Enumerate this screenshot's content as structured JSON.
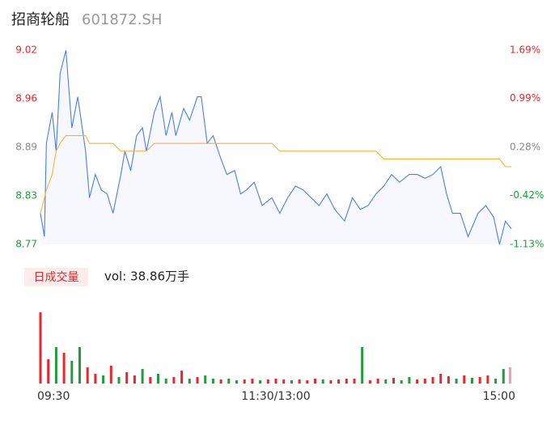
{
  "chart_data": [
    {
      "type": "line",
      "title": "招商轮船",
      "subtitle": "601872.SH",
      "x": [
        0,
        2,
        3,
        6,
        8,
        10,
        13,
        16,
        19,
        23,
        25,
        28,
        31,
        34,
        37,
        41,
        43,
        46,
        49,
        52,
        54,
        58,
        61,
        64,
        67,
        69,
        73,
        76,
        80,
        82,
        85,
        88,
        92,
        95,
        99,
        102,
        105,
        109,
        113,
        118,
        122,
        126,
        130,
        134,
        138,
        142,
        146,
        150,
        155,
        159,
        163,
        167,
        171,
        175,
        179,
        183,
        188,
        192,
        196,
        200,
        204,
        207,
        210,
        214,
        218,
        223,
        227,
        231,
        234,
        237,
        240
      ],
      "series": [
        {
          "color": "#4a7ee8",
          "area": true,
          "values": [
            8.81,
            8.78,
            8.9,
            8.94,
            8.89,
            8.99,
            9.02,
            8.92,
            8.96,
            8.89,
            8.83,
            8.86,
            8.84,
            8.835,
            8.81,
            8.86,
            8.89,
            8.865,
            8.91,
            8.92,
            8.89,
            8.94,
            8.96,
            8.91,
            8.94,
            8.91,
            8.945,
            8.93,
            8.96,
            8.96,
            8.9,
            8.91,
            8.88,
            8.86,
            8.865,
            8.835,
            8.84,
            8.85,
            8.82,
            8.83,
            8.81,
            8.83,
            8.845,
            8.84,
            8.83,
            8.82,
            8.835,
            8.815,
            8.8,
            8.83,
            8.815,
            8.82,
            8.835,
            8.845,
            8.86,
            8.85,
            8.86,
            8.86,
            8.855,
            8.86,
            8.87,
            8.835,
            8.81,
            8.81,
            8.78,
            8.81,
            8.82,
            8.805,
            8.77,
            8.8,
            8.79
          ]
        },
        {
          "color": "#f5b431",
          "values": [
            8.81,
            8.83,
            8.84,
            8.86,
            8.89,
            8.9,
            8.91,
            8.91,
            8.91,
            8.91,
            8.9,
            8.9,
            8.9,
            8.9,
            8.9,
            8.89,
            8.89,
            8.89,
            8.89,
            8.89,
            8.89,
            8.9,
            8.9,
            8.9,
            8.9,
            8.9,
            8.9,
            8.9,
            8.9,
            8.9,
            8.9,
            8.9,
            8.9,
            8.9,
            8.9,
            8.9,
            8.9,
            8.9,
            8.9,
            8.9,
            8.89,
            8.89,
            8.89,
            8.89,
            8.89,
            8.89,
            8.89,
            8.89,
            8.89,
            8.89,
            8.89,
            8.89,
            8.89,
            8.88,
            8.88,
            8.88,
            8.88,
            8.88,
            8.88,
            8.88,
            8.88,
            8.88,
            8.88,
            8.88,
            8.88,
            8.88,
            8.88,
            8.88,
            8.88,
            8.87,
            8.87
          ]
        }
      ],
      "xlim": [
        0,
        240
      ],
      "ylim": [
        8.77,
        9.02
      ],
      "yticks": [
        {
          "value": 9.02,
          "label": "9.02"
        },
        {
          "value": 8.9575,
          "label": "8.96"
        },
        {
          "value": 8.895,
          "label": "8.89"
        },
        {
          "value": 8.8325,
          "label": "8.83"
        },
        {
          "value": 8.77,
          "label": "8.77"
        }
      ],
      "y2lim": [
        -1.13,
        1.69
      ],
      "y2ticks": [
        {
          "value": 1.69,
          "label": "1.69%"
        },
        {
          "value": 0.99,
          "label": "0.99%"
        },
        {
          "value": 0.28,
          "label": "0.28%"
        },
        {
          "value": -0.42,
          "label": "-0.42%"
        },
        {
          "value": -1.13,
          "label": "-1.13%"
        }
      ],
      "tick_colors": [
        "#e8262b",
        "#e8262b",
        "#888888",
        "#1f9d3a",
        "#1f9d3a"
      ],
      "grid": false
    },
    {
      "type": "volume",
      "title": "日成交量",
      "annotation": "vol: 38.86万手",
      "x": [
        0,
        4,
        8,
        12,
        16,
        20,
        24,
        28,
        32,
        36,
        40,
        44,
        48,
        52,
        56,
        60,
        64,
        68,
        72,
        76,
        80,
        84,
        88,
        92,
        96,
        100,
        104,
        108,
        112,
        116,
        120,
        124,
        128,
        132,
        136,
        140,
        144,
        148,
        152,
        156,
        160,
        164,
        168,
        172,
        176,
        180,
        184,
        188,
        192,
        196,
        200,
        204,
        208,
        212,
        216,
        220,
        224,
        228,
        232,
        236,
        240
      ],
      "values": [
        8800,
        3000,
        4500,
        3800,
        2800,
        4500,
        2000,
        1200,
        1000,
        2200,
        800,
        1400,
        1000,
        1800,
        800,
        1200,
        600,
        800,
        1600,
        600,
        800,
        1000,
        600,
        500,
        600,
        400,
        500,
        600,
        400,
        500,
        600,
        500,
        400,
        500,
        400,
        600,
        500,
        400,
        500,
        600,
        600,
        4500,
        400,
        600,
        500,
        700,
        400,
        800,
        500,
        600,
        800,
        1200,
        900,
        600,
        1000,
        700,
        800,
        1000,
        600,
        1800,
        2000
      ],
      "colors": [
        "#e8262b",
        "#e8262b",
        "#1f9d3a",
        "#e8262b",
        "#1f9d3a",
        "#1f9d3a",
        "#e8262b",
        "#e8262b",
        "#1f9d3a",
        "#e8262b",
        "#1f9d3a",
        "#e8262b",
        "#e8262b",
        "#1f9d3a",
        "#e8262b",
        "#1f9d3a",
        "#1f9d3a",
        "#e8262b",
        "#e8262b",
        "#1f9d3a",
        "#e8262b",
        "#1f9d3a",
        "#1f9d3a",
        "#e8262b",
        "#1f9d3a",
        "#1f9d3a",
        "#e8262b",
        "#e8262b",
        "#1f9d3a",
        "#e8262b",
        "#e8262b",
        "#e8262b",
        "#1f9d3a",
        "#e8262b",
        "#e8262b",
        "#e8262b",
        "#1f9d3a",
        "#e8262b",
        "#e8262b",
        "#e8262b",
        "#e8262b",
        "#1f9d3a",
        "#e8262b",
        "#e8262b",
        "#1f9d3a",
        "#e8262b",
        "#1f9d3a",
        "#1f9d3a",
        "#e8262b",
        "#e8262b",
        "#e8262b",
        "#e8262b",
        "#e8262b",
        "#1f9d3a",
        "#e8262b",
        "#1f9d3a",
        "#e8262b",
        "#e8262b",
        "#1f9d3a",
        "#1f9d3a",
        "#f4a0a0"
      ],
      "xlim": [
        0,
        240
      ],
      "ylim": [
        0,
        9000
      ],
      "xticks": [
        {
          "value": 0,
          "label": "09:30"
        },
        {
          "value": 120,
          "label": "11:30/13:00"
        },
        {
          "value": 240,
          "label": "15:00"
        }
      ]
    }
  ]
}
